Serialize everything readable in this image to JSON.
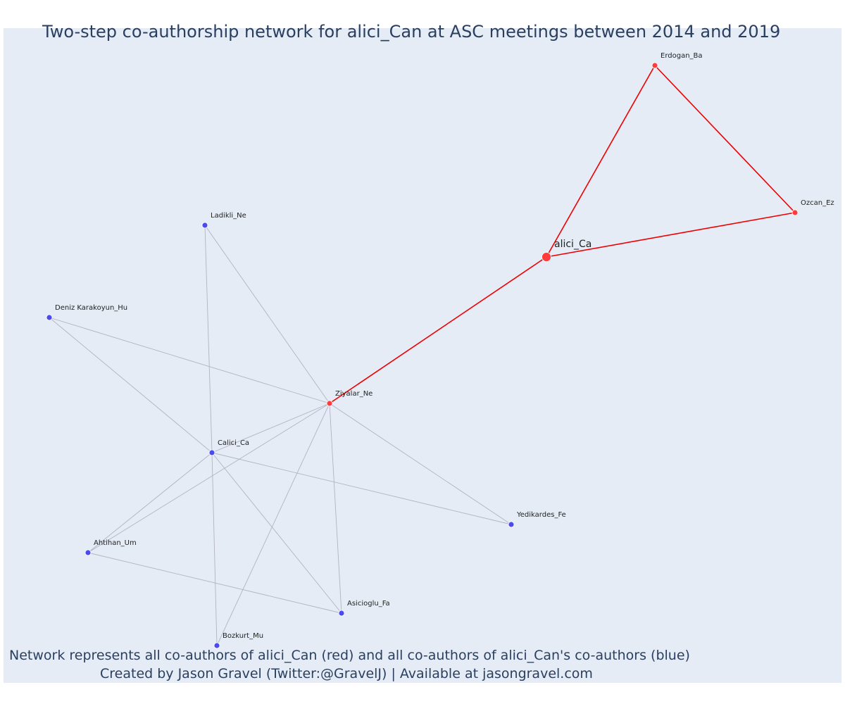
{
  "title": "Two-step co-authorship network for alici_Can at ASC meetings between 2014 and 2019",
  "footer": {
    "line1": "Network represents all co-authors of alici_Can (red) and all co-authors of alici_Can's co-authors (blue)",
    "line2": "Created by Jason Gravel (Twitter:@GravelJ) | Available at jasongravel.com"
  },
  "colors": {
    "background": "#e5ecf6",
    "red": "#ff3b3b",
    "blue": "#4a4aee",
    "red_edge": "#ee0000",
    "grey_edge": "#b3b3c3"
  },
  "nodes": [
    {
      "id": "alici_Ca",
      "label": "alici_Ca",
      "group": "center"
    },
    {
      "id": "Erdogan_Ba",
      "label": "Erdogan_Ba",
      "group": "red"
    },
    {
      "id": "Ozcan_Ez",
      "label": "Ozcan_Ez",
      "group": "red"
    },
    {
      "id": "Ziyalar_Ne",
      "label": "Ziyalar_Ne",
      "group": "red"
    },
    {
      "id": "Ladikli_Ne",
      "label": "Ladikli_Ne",
      "group": "blue"
    },
    {
      "id": "Deniz Karakoyun_Hu",
      "label": "Deniz Karakoyun_Hu",
      "group": "blue"
    },
    {
      "id": "Calici_Ca",
      "label": "Calici_Ca",
      "group": "blue"
    },
    {
      "id": "Yedikardes_Fe",
      "label": "Yedikardes_Fe",
      "group": "blue"
    },
    {
      "id": "Ahtihan_Um",
      "label": "Ahtihan_Um",
      "group": "blue"
    },
    {
      "id": "Asicioglu_Fa",
      "label": "Asicioglu_Fa",
      "group": "blue"
    },
    {
      "id": "Bozkurt_Mu",
      "label": "Bozkurt_Mu",
      "group": "blue"
    }
  ],
  "edges": [
    {
      "source": "alici_Ca",
      "target": "Erdogan_Ba",
      "type": "red"
    },
    {
      "source": "alici_Ca",
      "target": "Ozcan_Ez",
      "type": "red"
    },
    {
      "source": "Erdogan_Ba",
      "target": "Ozcan_Ez",
      "type": "red"
    },
    {
      "source": "alici_Ca",
      "target": "Ziyalar_Ne",
      "type": "red"
    },
    {
      "source": "Ziyalar_Ne",
      "target": "Ladikli_Ne",
      "type": "grey"
    },
    {
      "source": "Ziyalar_Ne",
      "target": "Deniz Karakoyun_Hu",
      "type": "grey"
    },
    {
      "source": "Ziyalar_Ne",
      "target": "Calici_Ca",
      "type": "grey"
    },
    {
      "source": "Ziyalar_Ne",
      "target": "Yedikardes_Fe",
      "type": "grey"
    },
    {
      "source": "Ziyalar_Ne",
      "target": "Ahtihan_Um",
      "type": "grey"
    },
    {
      "source": "Ziyalar_Ne",
      "target": "Asicioglu_Fa",
      "type": "grey"
    },
    {
      "source": "Ziyalar_Ne",
      "target": "Bozkurt_Mu",
      "type": "grey"
    },
    {
      "source": "Calici_Ca",
      "target": "Ladikli_Ne",
      "type": "grey"
    },
    {
      "source": "Calici_Ca",
      "target": "Deniz Karakoyun_Hu",
      "type": "grey"
    },
    {
      "source": "Calici_Ca",
      "target": "Yedikardes_Fe",
      "type": "grey"
    },
    {
      "source": "Calici_Ca",
      "target": "Ahtihan_Um",
      "type": "grey"
    },
    {
      "source": "Calici_Ca",
      "target": "Asicioglu_Fa",
      "type": "grey"
    },
    {
      "source": "Calici_Ca",
      "target": "Bozkurt_Mu",
      "type": "grey"
    },
    {
      "source": "Ahtihan_Um",
      "target": "Asicioglu_Fa",
      "type": "grey"
    }
  ]
}
